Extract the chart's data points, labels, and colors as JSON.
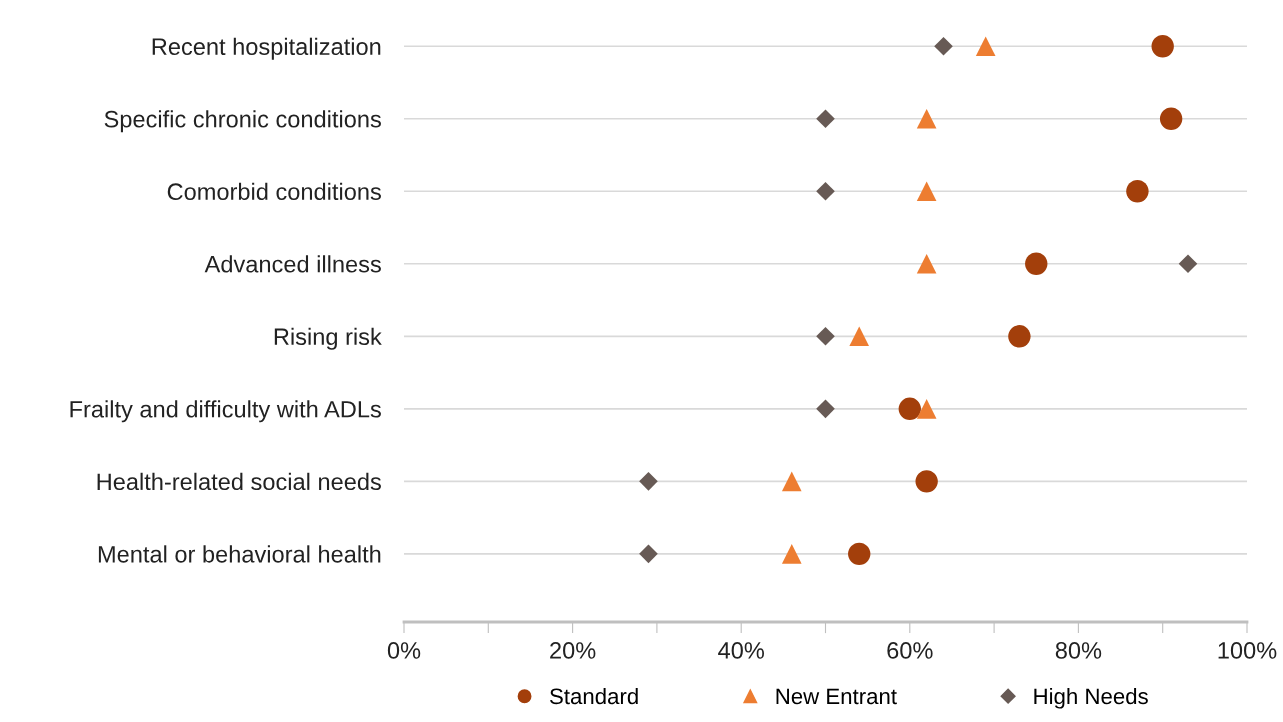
{
  "chart_data": {
    "type": "scatter",
    "orientation": "horizontal",
    "categories": [
      "Recent hospitalization",
      "Specific chronic conditions",
      "Comorbid conditions",
      "Advanced illness",
      "Rising risk",
      "Frailty and difficulty with ADLs",
      "Health-related social needs",
      "Mental or behavioral health"
    ],
    "series": [
      {
        "name": "Standard",
        "color": "#a33f0b",
        "marker": "circle",
        "values": [
          90,
          91,
          87,
          75,
          73,
          60,
          62,
          54
        ]
      },
      {
        "name": "New Entrant",
        "color": "#ed7d31",
        "marker": "triangle",
        "values": [
          69,
          62,
          62,
          62,
          54,
          62,
          46,
          46
        ]
      },
      {
        "name": "High Needs",
        "color": "#675a55",
        "marker": "diamond",
        "values": [
          64,
          50,
          50,
          93,
          50,
          50,
          29,
          29
        ]
      }
    ],
    "xlim": [
      0,
      100
    ],
    "xticks": [
      {
        "value": 0,
        "label": "0%"
      },
      {
        "value": 10,
        "label": null
      },
      {
        "value": 20,
        "label": "20%"
      },
      {
        "value": 30,
        "label": null
      },
      {
        "value": 40,
        "label": "40%"
      },
      {
        "value": 50,
        "label": null
      },
      {
        "value": 60,
        "label": "60%"
      },
      {
        "value": 70,
        "label": null
      },
      {
        "value": 80,
        "label": "80%"
      },
      {
        "value": 90,
        "label": null
      },
      {
        "value": 100,
        "label": "100%"
      }
    ],
    "grid": "y",
    "legend": "bottom"
  }
}
